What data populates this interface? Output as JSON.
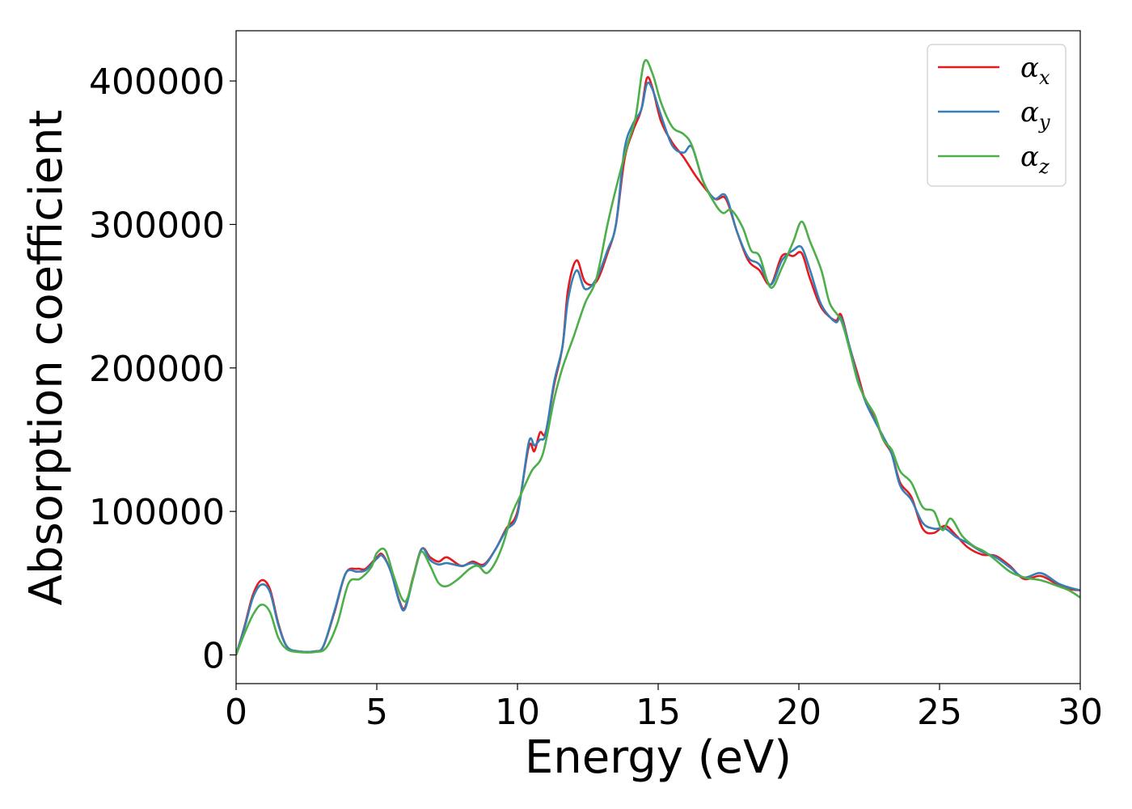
{
  "chart_data": {
    "type": "line",
    "xlabel": "Energy (eV)",
    "ylabel": "Absorption coefficient",
    "xlim": [
      0,
      30
    ],
    "ylim": [
      -20000,
      435000
    ],
    "xticks": [
      "0",
      "5",
      "10",
      "15",
      "20",
      "25",
      "30"
    ],
    "yticks": [
      "0",
      "100000",
      "200000",
      "300000",
      "400000"
    ],
    "grid": false,
    "legend_position": "top-right",
    "series": [
      {
        "name": "αx",
        "legend_base": "α",
        "legend_sub": "x",
        "color": "#e41a1c",
        "points": [
          [
            0,
            0
          ],
          [
            0.3,
            20000
          ],
          [
            0.6,
            42000
          ],
          [
            0.9,
            52000
          ],
          [
            1.2,
            46000
          ],
          [
            1.5,
            22000
          ],
          [
            1.8,
            6000
          ],
          [
            2.2,
            2500
          ],
          [
            2.8,
            2500
          ],
          [
            3.1,
            6000
          ],
          [
            3.5,
            30000
          ],
          [
            3.9,
            57000
          ],
          [
            4.3,
            60000
          ],
          [
            4.6,
            60000
          ],
          [
            5.0,
            68000
          ],
          [
            5.2,
            70000
          ],
          [
            5.5,
            58000
          ],
          [
            5.8,
            38000
          ],
          [
            6.0,
            33000
          ],
          [
            6.3,
            55000
          ],
          [
            6.6,
            74000
          ],
          [
            6.9,
            68000
          ],
          [
            7.2,
            65000
          ],
          [
            7.5,
            68000
          ],
          [
            8.0,
            62000
          ],
          [
            8.4,
            65000
          ],
          [
            8.8,
            63000
          ],
          [
            9.2,
            73000
          ],
          [
            9.6,
            88000
          ],
          [
            10.0,
            100000
          ],
          [
            10.4,
            145000
          ],
          [
            10.6,
            142000
          ],
          [
            10.8,
            155000
          ],
          [
            11.0,
            155000
          ],
          [
            11.3,
            188000
          ],
          [
            11.6,
            215000
          ],
          [
            11.8,
            255000
          ],
          [
            12.1,
            275000
          ],
          [
            12.4,
            260000
          ],
          [
            12.8,
            260000
          ],
          [
            13.2,
            280000
          ],
          [
            13.5,
            300000
          ],
          [
            13.8,
            345000
          ],
          [
            14.1,
            365000
          ],
          [
            14.4,
            380000
          ],
          [
            14.6,
            402000
          ],
          [
            14.8,
            395000
          ],
          [
            15.1,
            372000
          ],
          [
            15.5,
            357000
          ],
          [
            15.9,
            347000
          ],
          [
            16.4,
            332000
          ],
          [
            17.0,
            318000
          ],
          [
            17.4,
            318000
          ],
          [
            17.8,
            295000
          ],
          [
            18.2,
            275000
          ],
          [
            18.6,
            268000
          ],
          [
            19.0,
            258000
          ],
          [
            19.4,
            278000
          ],
          [
            19.8,
            278000
          ],
          [
            20.1,
            280000
          ],
          [
            20.4,
            262000
          ],
          [
            20.8,
            242000
          ],
          [
            21.3,
            233000
          ],
          [
            21.5,
            237000
          ],
          [
            21.8,
            215000
          ],
          [
            22.1,
            195000
          ],
          [
            22.4,
            175000
          ],
          [
            22.7,
            165000
          ],
          [
            23.0,
            150000
          ],
          [
            23.3,
            140000
          ],
          [
            23.6,
            120000
          ],
          [
            24.0,
            110000
          ],
          [
            24.4,
            88000
          ],
          [
            24.8,
            85000
          ],
          [
            25.2,
            90000
          ],
          [
            25.6,
            83000
          ],
          [
            26.0,
            75000
          ],
          [
            26.5,
            70000
          ],
          [
            27.0,
            69000
          ],
          [
            27.5,
            62000
          ],
          [
            28.0,
            53000
          ],
          [
            28.6,
            55000
          ],
          [
            29.2,
            49000
          ],
          [
            29.6,
            46000
          ],
          [
            30.0,
            45000
          ]
        ]
      },
      {
        "name": "αy",
        "legend_base": "α",
        "legend_sub": "y",
        "color": "#377eb8",
        "points": [
          [
            0,
            0
          ],
          [
            0.3,
            19000
          ],
          [
            0.6,
            40000
          ],
          [
            0.9,
            49000
          ],
          [
            1.2,
            44000
          ],
          [
            1.5,
            21000
          ],
          [
            1.8,
            6000
          ],
          [
            2.2,
            2500
          ],
          [
            2.8,
            2500
          ],
          [
            3.1,
            6000
          ],
          [
            3.5,
            31000
          ],
          [
            3.9,
            57000
          ],
          [
            4.3,
            58000
          ],
          [
            4.6,
            59000
          ],
          [
            5.0,
            67000
          ],
          [
            5.2,
            69000
          ],
          [
            5.5,
            58000
          ],
          [
            5.8,
            37000
          ],
          [
            6.0,
            32000
          ],
          [
            6.3,
            54000
          ],
          [
            6.6,
            74000
          ],
          [
            6.9,
            66000
          ],
          [
            7.2,
            63000
          ],
          [
            7.5,
            64000
          ],
          [
            8.0,
            62000
          ],
          [
            8.4,
            64000
          ],
          [
            8.8,
            62000
          ],
          [
            9.2,
            73000
          ],
          [
            9.6,
            87000
          ],
          [
            10.0,
            98000
          ],
          [
            10.4,
            148000
          ],
          [
            10.6,
            146000
          ],
          [
            10.8,
            150000
          ],
          [
            11.0,
            154000
          ],
          [
            11.3,
            190000
          ],
          [
            11.6,
            215000
          ],
          [
            11.8,
            248000
          ],
          [
            12.1,
            268000
          ],
          [
            12.4,
            255000
          ],
          [
            12.8,
            262000
          ],
          [
            13.2,
            282000
          ],
          [
            13.5,
            300000
          ],
          [
            13.8,
            352000
          ],
          [
            14.1,
            370000
          ],
          [
            14.4,
            380000
          ],
          [
            14.6,
            398000
          ],
          [
            14.8,
            394000
          ],
          [
            15.1,
            376000
          ],
          [
            15.5,
            355000
          ],
          [
            15.9,
            350000
          ],
          [
            16.2,
            354000
          ],
          [
            16.6,
            330000
          ],
          [
            17.0,
            318000
          ],
          [
            17.4,
            320000
          ],
          [
            17.8,
            295000
          ],
          [
            18.2,
            277000
          ],
          [
            18.6,
            272000
          ],
          [
            19.0,
            258000
          ],
          [
            19.4,
            275000
          ],
          [
            19.8,
            282000
          ],
          [
            20.1,
            284000
          ],
          [
            20.4,
            268000
          ],
          [
            20.8,
            244000
          ],
          [
            21.3,
            232000
          ],
          [
            21.5,
            235000
          ],
          [
            21.8,
            215000
          ],
          [
            22.1,
            192000
          ],
          [
            22.4,
            175000
          ],
          [
            22.7,
            163000
          ],
          [
            23.0,
            152000
          ],
          [
            23.3,
            140000
          ],
          [
            23.6,
            118000
          ],
          [
            24.0,
            108000
          ],
          [
            24.4,
            92000
          ],
          [
            24.8,
            88000
          ],
          [
            25.2,
            88000
          ],
          [
            25.6,
            82000
          ],
          [
            26.0,
            78000
          ],
          [
            26.5,
            72000
          ],
          [
            27.0,
            68000
          ],
          [
            27.5,
            61000
          ],
          [
            28.0,
            54000
          ],
          [
            28.6,
            57000
          ],
          [
            29.2,
            50000
          ],
          [
            29.6,
            47000
          ],
          [
            30.0,
            45000
          ]
        ]
      },
      {
        "name": "αz",
        "legend_base": "α",
        "legend_sub": "z",
        "color": "#4daf4a",
        "points": [
          [
            0,
            0
          ],
          [
            0.3,
            15000
          ],
          [
            0.6,
            28000
          ],
          [
            0.9,
            35000
          ],
          [
            1.2,
            30000
          ],
          [
            1.5,
            12000
          ],
          [
            1.8,
            4000
          ],
          [
            2.2,
            2000
          ],
          [
            2.8,
            2000
          ],
          [
            3.2,
            5000
          ],
          [
            3.6,
            22000
          ],
          [
            4.0,
            50000
          ],
          [
            4.4,
            53000
          ],
          [
            4.8,
            61000
          ],
          [
            5.0,
            71000
          ],
          [
            5.3,
            73000
          ],
          [
            5.6,
            55000
          ],
          [
            5.9,
            39000
          ],
          [
            6.1,
            40000
          ],
          [
            6.4,
            62000
          ],
          [
            6.6,
            72000
          ],
          [
            6.9,
            62000
          ],
          [
            7.2,
            50000
          ],
          [
            7.5,
            48000
          ],
          [
            7.9,
            53000
          ],
          [
            8.3,
            60000
          ],
          [
            8.6,
            62000
          ],
          [
            8.9,
            57000
          ],
          [
            9.2,
            64000
          ],
          [
            9.5,
            78000
          ],
          [
            9.8,
            98000
          ],
          [
            10.1,
            111000
          ],
          [
            10.5,
            128000
          ],
          [
            10.9,
            140000
          ],
          [
            11.3,
            178000
          ],
          [
            11.6,
            200000
          ],
          [
            12.0,
            222000
          ],
          [
            12.4,
            245000
          ],
          [
            12.8,
            262000
          ],
          [
            13.2,
            300000
          ],
          [
            13.5,
            325000
          ],
          [
            13.9,
            355000
          ],
          [
            14.2,
            375000
          ],
          [
            14.5,
            413000
          ],
          [
            14.8,
            405000
          ],
          [
            15.1,
            385000
          ],
          [
            15.5,
            368000
          ],
          [
            15.9,
            363000
          ],
          [
            16.2,
            355000
          ],
          [
            16.6,
            330000
          ],
          [
            17.0,
            315000
          ],
          [
            17.3,
            308000
          ],
          [
            17.6,
            310000
          ],
          [
            18.0,
            298000
          ],
          [
            18.3,
            282000
          ],
          [
            18.6,
            278000
          ],
          [
            19.0,
            256000
          ],
          [
            19.4,
            270000
          ],
          [
            19.8,
            288000
          ],
          [
            20.1,
            302000
          ],
          [
            20.4,
            288000
          ],
          [
            20.8,
            268000
          ],
          [
            21.1,
            245000
          ],
          [
            21.5,
            233000
          ],
          [
            21.8,
            213000
          ],
          [
            22.1,
            190000
          ],
          [
            22.4,
            177000
          ],
          [
            22.7,
            167000
          ],
          [
            23.0,
            150000
          ],
          [
            23.3,
            143000
          ],
          [
            23.6,
            128000
          ],
          [
            24.0,
            120000
          ],
          [
            24.4,
            103000
          ],
          [
            24.8,
            100000
          ],
          [
            25.1,
            87000
          ],
          [
            25.4,
            95000
          ],
          [
            25.8,
            83000
          ],
          [
            26.2,
            76000
          ],
          [
            26.6,
            72000
          ],
          [
            27.0,
            66000
          ],
          [
            27.5,
            58000
          ],
          [
            28.0,
            54000
          ],
          [
            28.6,
            52000
          ],
          [
            29.2,
            48000
          ],
          [
            29.6,
            45000
          ],
          [
            30.0,
            40000
          ]
        ]
      }
    ]
  }
}
